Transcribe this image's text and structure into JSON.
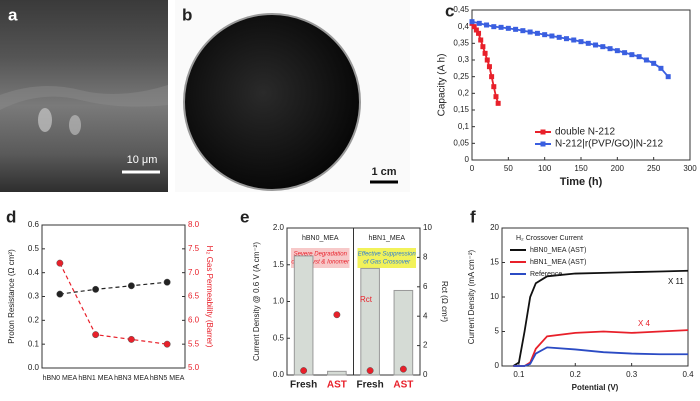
{
  "images": [
    {
      "label": "a",
      "scale_bar": "10 μm"
    },
    {
      "label": "b",
      "scale_bar": "1 cm"
    }
  ],
  "chart_data": [
    {
      "label": "c",
      "type": "line",
      "x_label": "Time (h)",
      "y_label": "Capacity (A h)",
      "xlim": [
        0,
        300
      ],
      "xticks": [
        0,
        50,
        100,
        150,
        200,
        250,
        300
      ],
      "ylim": [
        0,
        0.45
      ],
      "yticks": [
        0,
        {
          "value": 0.05,
          "label": "0,05"
        },
        {
          "value": 0.1,
          "label": "0,1"
        },
        {
          "value": 0.15,
          "label": "0,15"
        },
        {
          "value": 0.2,
          "label": "0,2"
        },
        {
          "value": 0.25,
          "label": "0,25"
        },
        {
          "value": 0.3,
          "label": "0,3"
        },
        {
          "value": 0.35,
          "label": "0,35"
        },
        {
          "value": 0.4,
          "label": "0,4"
        },
        {
          "value": 0.45,
          "label": "0,45"
        }
      ],
      "legend": "lower right",
      "series": [
        {
          "name": "double N-212",
          "color": "#e8202a",
          "marker": "square",
          "x": [
            0,
            3,
            6,
            9,
            12,
            15,
            18,
            21,
            24,
            27,
            30,
            33,
            36
          ],
          "values": [
            0.41,
            0.4,
            0.39,
            0.38,
            0.36,
            0.34,
            0.32,
            0.3,
            0.28,
            0.25,
            0.22,
            0.19,
            0.17
          ]
        },
        {
          "name": "N-212|r(PVP/GO)|N-212",
          "color": "#3a5fe0",
          "marker": "square",
          "x": [
            0,
            10,
            20,
            30,
            40,
            50,
            60,
            70,
            80,
            90,
            100,
            110,
            120,
            130,
            140,
            150,
            160,
            170,
            180,
            190,
            200,
            210,
            220,
            230,
            240,
            250,
            260,
            270
          ],
          "values": [
            0.415,
            0.41,
            0.405,
            0.4,
            0.398,
            0.395,
            0.392,
            0.388,
            0.384,
            0.38,
            0.376,
            0.372,
            0.368,
            0.364,
            0.36,
            0.355,
            0.35,
            0.345,
            0.34,
            0.334,
            0.328,
            0.322,
            0.316,
            0.31,
            0.3,
            0.29,
            0.275,
            0.25
          ]
        }
      ]
    },
    {
      "label": "d",
      "type": "line",
      "line_style": "dashed",
      "categories": [
        "hBN0 MEA",
        "hBN1 MEA",
        "hBN3 MEA",
        "hBN5 MEA"
      ],
      "y_label": "Proton Resistance (Ω cm²)",
      "y2_label": "H₂ Gas Permeability (Barrer)",
      "ylim": [
        0,
        0.6
      ],
      "yticks": [
        {
          "value": 0,
          "label": "0.0"
        },
        0.1,
        0.2,
        0.3,
        0.4,
        0.5,
        0.6
      ],
      "y2lim": [
        5,
        8
      ],
      "y2ticks": [
        {
          "value": 5,
          "label": "5.0"
        },
        5.5,
        {
          "value": 6,
          "label": "6.0"
        },
        6.5,
        {
          "value": 7,
          "label": "7.0"
        },
        7.5,
        {
          "value": 8,
          "label": "8.0"
        }
      ],
      "series": [
        {
          "color": "#222222",
          "marker": "circle",
          "values": [
            0.31,
            0.33,
            0.345,
            0.36
          ]
        },
        {
          "color": "#e8202a",
          "marker": "circle",
          "axis": "y2",
          "values": [
            7.2,
            5.7,
            5.6,
            5.5
          ]
        }
      ]
    },
    {
      "label": "e",
      "type": "bar",
      "groups": [
        {
          "name": "hBN0_MEA",
          "note": [
            "Severe Degradation",
            "of Catalyst & Ionomer"
          ],
          "color": "#f7c9c9"
        },
        {
          "name": "hBN1_MEA",
          "note": [
            "Effective Suppression",
            "of Gas Crossover"
          ],
          "color": "#f2f25a"
        }
      ],
      "categories": [
        "Fresh",
        "AST",
        "Fresh",
        "AST"
      ],
      "annotations": [
        "Rct"
      ],
      "y_label": "Current Density @ 0.6 V (A cm⁻²)",
      "y2_label": "Rct (Ω cm²)",
      "ylim": [
        0,
        2
      ],
      "yticks": [
        {
          "value": 0,
          "label": "0.0"
        },
        0.5,
        {
          "value": 1,
          "label": "1.0"
        },
        1.5,
        {
          "value": 2,
          "label": "2.0"
        }
      ],
      "y2lim": [
        0,
        10
      ],
      "y2ticks": [
        0,
        2,
        4,
        6,
        8,
        10
      ],
      "series": [
        {
          "type": "bar",
          "color": "#d5dbd5",
          "values": [
            1.62,
            0.05,
            1.45,
            1.15
          ]
        },
        {
          "type": "scatter",
          "color": "#e8202a",
          "marker": "circle",
          "axis": "y2",
          "values": [
            0.3,
            4.1,
            0.3,
            0.4
          ]
        }
      ]
    },
    {
      "label": "f",
      "type": "line",
      "title": "H₂ Crossover Current",
      "x_label": "Potential (V)",
      "y_label": "Current Density (mA cm⁻²)",
      "xlim": [
        0.07,
        0.4
      ],
      "xticks": [
        0.1,
        0.2,
        0.3,
        0.4
      ],
      "ylim": [
        0,
        20
      ],
      "yticks": [
        0,
        5,
        10,
        15,
        20
      ],
      "legend": "upper left",
      "annotations": [
        "X 11",
        "X 4"
      ],
      "series": [
        {
          "name": "hBN0_MEA (AST)",
          "color": "#111111",
          "x": [
            0.09,
            0.1,
            0.11,
            0.12,
            0.13,
            0.15,
            0.2,
            0.25,
            0.3,
            0.35,
            0.4
          ],
          "values": [
            0,
            0.5,
            5,
            10,
            12,
            13,
            13.4,
            13.5,
            13.6,
            13.7,
            13.8
          ]
        },
        {
          "name": "hBN1_MEA (AST)",
          "color": "#e8202a",
          "x": [
            0.09,
            0.1,
            0.11,
            0.12,
            0.13,
            0.15,
            0.2,
            0.25,
            0.3,
            0.35,
            0.4
          ],
          "values": [
            0,
            0,
            0,
            0.5,
            2.5,
            4.3,
            4.8,
            5,
            4.8,
            5,
            5.2
          ]
        },
        {
          "name": "Reference",
          "color": "#2b4bc4",
          "x": [
            0.09,
            0.1,
            0.11,
            0.12,
            0.13,
            0.15,
            0.2,
            0.25,
            0.3,
            0.35,
            0.4
          ],
          "values": [
            0,
            0,
            0,
            0.3,
            1.8,
            2.7,
            2.4,
            2,
            1.8,
            1.7,
            1.7
          ]
        }
      ]
    }
  ]
}
